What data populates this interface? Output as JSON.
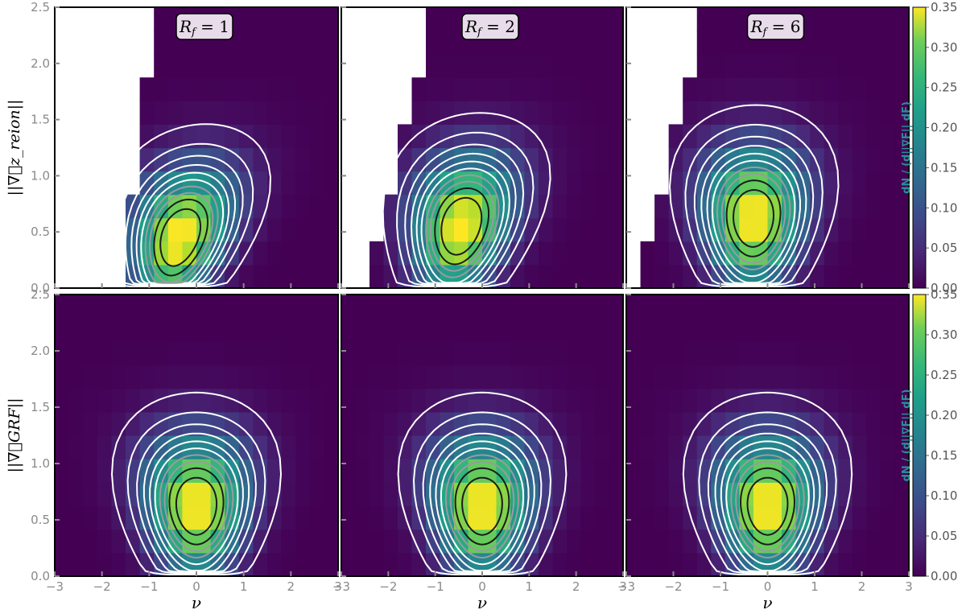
{
  "colors": {
    "white_contour": "#ffffff",
    "grey_contour": "#9a9aa2",
    "dark_contour": "#1c1c1c",
    "colormap": "viridis"
  },
  "chart_data": {
    "type": "heatmap",
    "layout": {
      "rows": 2,
      "cols": 3
    },
    "rows": [
      {
        "ylabel": "||∇⃗z_reion||"
      },
      {
        "ylabel": "||∇⃗GRF||"
      }
    ],
    "xlabel": "ν",
    "xlim": [
      -3,
      3
    ],
    "ylim": [
      0,
      2.5
    ],
    "xticks": [
      "−3",
      "−2",
      "−1",
      "0",
      "1",
      "2",
      "3"
    ],
    "yticks": [
      "0.0",
      "0.5",
      "1.0",
      "1.5",
      "2.0",
      "2.5"
    ],
    "panels": [
      {
        "row": 0,
        "col": 0,
        "label": "1",
        "type": "zreion",
        "center_nu": -0.35,
        "center_grad": 0.45,
        "skew": 0.55,
        "edge_nu_at_top": -1.0,
        "edge_nu_at_bottom": -1.75
      },
      {
        "row": 0,
        "col": 1,
        "label": "2",
        "type": "zreion",
        "center_nu": -0.45,
        "center_grad": 0.55,
        "skew": 0.4,
        "edge_nu_at_top": -1.2,
        "edge_nu_at_bottom": -2.6
      },
      {
        "row": 0,
        "col": 2,
        "label": "6",
        "type": "zreion",
        "center_nu": -0.3,
        "center_grad": 0.62,
        "skew": 0.05,
        "edge_nu_at_top": -1.5,
        "edge_nu_at_bottom": -2.9
      },
      {
        "row": 1,
        "col": 0,
        "label": "1",
        "type": "grf",
        "center_nu": 0.0,
        "center_grad": 0.62,
        "skew": 0.0
      },
      {
        "row": 1,
        "col": 1,
        "label": "2",
        "type": "grf",
        "center_nu": 0.0,
        "center_grad": 0.62,
        "skew": 0.0
      },
      {
        "row": 1,
        "col": 2,
        "label": "6",
        "type": "grf",
        "center_nu": 0.0,
        "center_grad": 0.62,
        "skew": 0.0
      }
    ],
    "panel_label_prefix": "R",
    "panel_label_subscript": "f",
    "colorbar": {
      "label": "dN / (d||∇F|| dF)",
      "range": [
        0.0,
        0.35
      ],
      "ticks": [
        "0.00",
        "0.05",
        "0.10",
        "0.15",
        "0.20",
        "0.25",
        "0.30",
        "0.35"
      ]
    }
  }
}
